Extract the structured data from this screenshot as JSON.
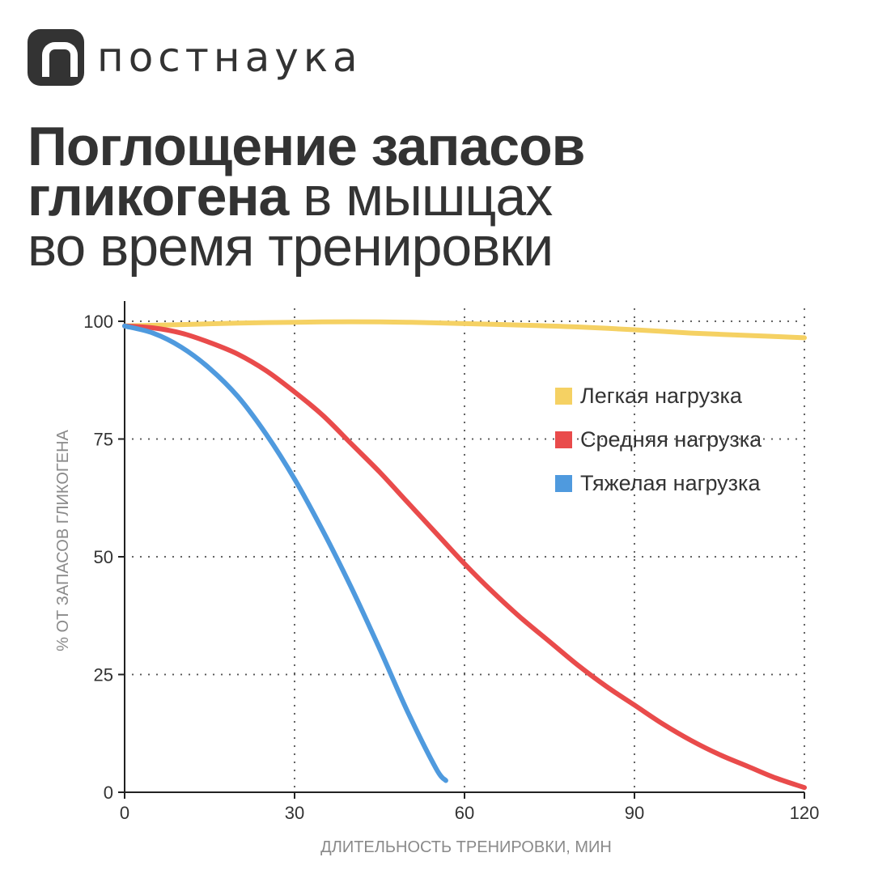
{
  "logo": {
    "text": "постнаука"
  },
  "title": {
    "line1_bold": "Поглощение запасов",
    "line2_bold": "гликогена",
    "line2_normal": " в мышцах",
    "line3_normal": "во время тренировки"
  },
  "colors": {
    "text": "#333333",
    "axis_label": "#8a8a8a"
  },
  "chart_data": {
    "type": "line",
    "xlabel": "ДЛИТЕЛЬНОСТЬ ТРЕНИРОВКИ, МИН",
    "ylabel": "% ОТ ЗАПАСОВ ГЛИКОГЕНА",
    "xlim": [
      0,
      120
    ],
    "ylim": [
      0,
      100
    ],
    "xticks": [
      0,
      30,
      60,
      90,
      120
    ],
    "yticks": [
      0,
      25,
      50,
      75,
      100
    ],
    "grid": true,
    "legend_position": "top-right",
    "series": [
      {
        "name": "Легкая нагрузка",
        "color": "#f5d163",
        "points": [
          [
            0,
            99
          ],
          [
            10,
            99.3
          ],
          [
            20,
            99.6
          ],
          [
            30,
            99.8
          ],
          [
            40,
            99.9
          ],
          [
            50,
            99.8
          ],
          [
            60,
            99.5
          ],
          [
            70,
            99.2
          ],
          [
            80,
            98.8
          ],
          [
            90,
            98.2
          ],
          [
            100,
            97.5
          ],
          [
            110,
            97
          ],
          [
            120,
            96.5
          ]
        ]
      },
      {
        "name": "Средняя нагрузка",
        "color": "#e94b4b",
        "points": [
          [
            0,
            99
          ],
          [
            5,
            98.6
          ],
          [
            10,
            97.5
          ],
          [
            15,
            95.5
          ],
          [
            20,
            93
          ],
          [
            25,
            89.5
          ],
          [
            30,
            85
          ],
          [
            35,
            80
          ],
          [
            40,
            74
          ],
          [
            45,
            68
          ],
          [
            50,
            61.5
          ],
          [
            55,
            55
          ],
          [
            60,
            48.5
          ],
          [
            65,
            42.5
          ],
          [
            70,
            37
          ],
          [
            75,
            32
          ],
          [
            80,
            27
          ],
          [
            85,
            22.5
          ],
          [
            90,
            18.5
          ],
          [
            95,
            14.5
          ],
          [
            100,
            11
          ],
          [
            105,
            8
          ],
          [
            110,
            5.5
          ],
          [
            115,
            3
          ],
          [
            120,
            1
          ]
        ]
      },
      {
        "name": "Тяжелая нагрузка",
        "color": "#4f9ade",
        "points": [
          [
            0,
            99
          ],
          [
            5,
            97.5
          ],
          [
            10,
            94.5
          ],
          [
            15,
            90
          ],
          [
            20,
            84
          ],
          [
            25,
            76
          ],
          [
            30,
            66.5
          ],
          [
            35,
            55.5
          ],
          [
            40,
            43.5
          ],
          [
            45,
            30.5
          ],
          [
            50,
            17
          ],
          [
            55,
            5
          ],
          [
            56.7,
            2.5
          ]
        ]
      }
    ]
  }
}
